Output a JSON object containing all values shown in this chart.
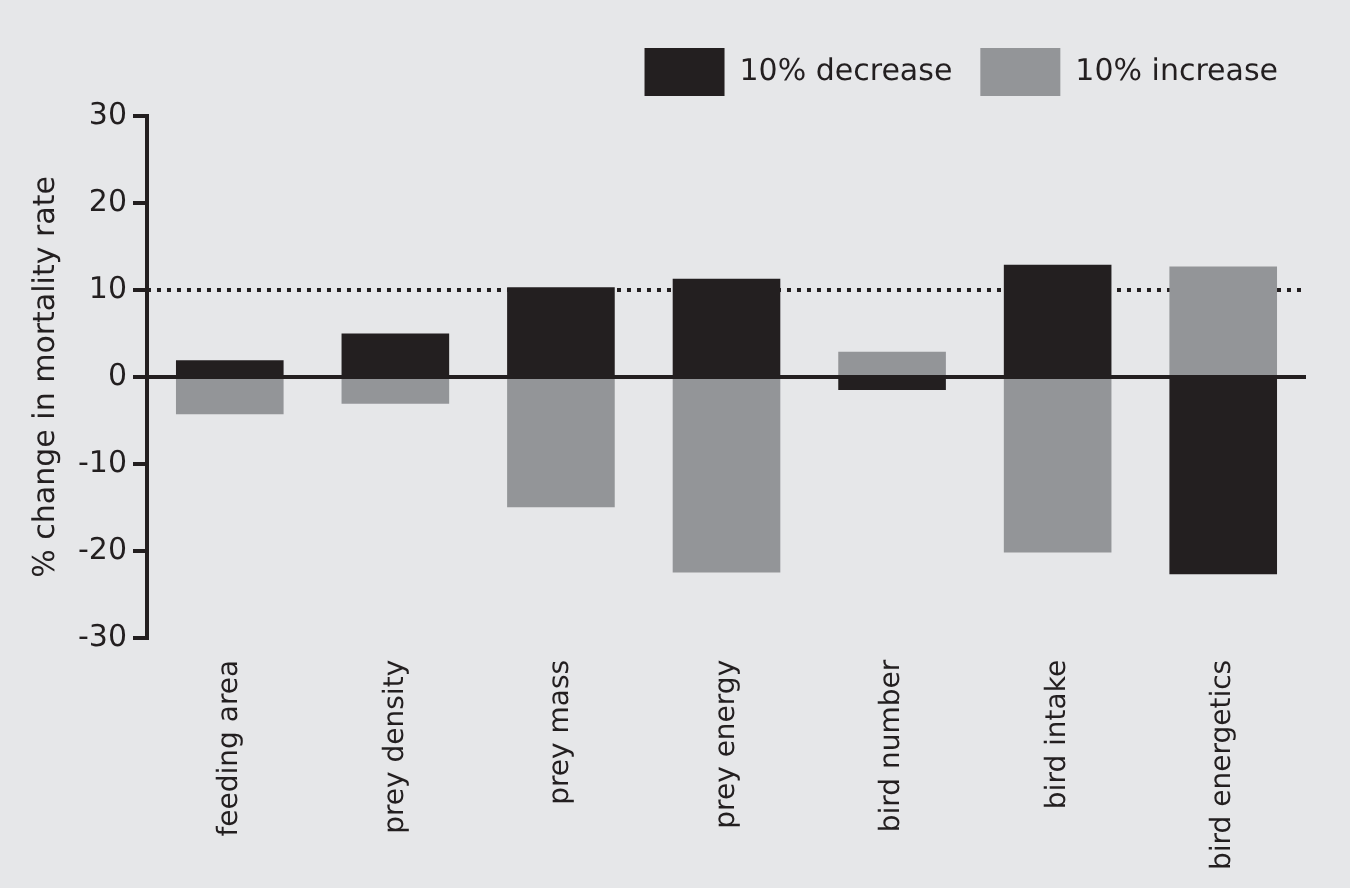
{
  "chart_data": {
    "type": "bar",
    "ylabel": "% change in mortality rate",
    "categories": [
      "feeding area",
      "prey density",
      "prey mass",
      "prey energy",
      "bird number",
      "bird intake",
      "bird energetics"
    ],
    "series": [
      {
        "name": "10% decrease",
        "color": "#231f20",
        "values": [
          1.9,
          5,
          10.3,
          11.3,
          -1.5,
          12.9,
          -22.7
        ]
      },
      {
        "name": "10% increase",
        "color": "#939598",
        "values": [
          -4.3,
          -3.1,
          -15,
          -22.5,
          2.9,
          -20.2,
          12.7
        ]
      }
    ],
    "stacked": true,
    "ylim": [
      -30,
      30
    ],
    "yticks": [
      -30,
      -20,
      -10,
      0,
      10,
      20,
      30
    ],
    "ref_lines": [
      {
        "axis": "y",
        "value": 10,
        "color": "#231f20",
        "line_style": "dotted"
      }
    ],
    "legend": "top right"
  }
}
